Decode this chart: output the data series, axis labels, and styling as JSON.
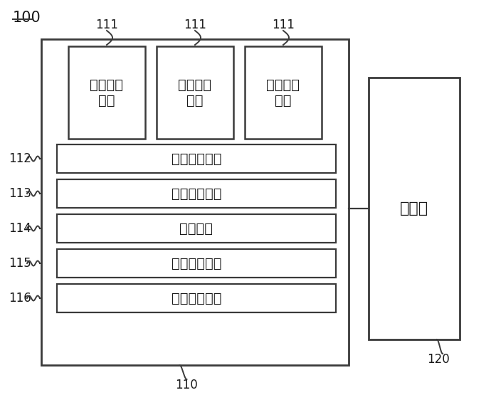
{
  "bg_color": "#ffffff",
  "line_color": "#3a3a3a",
  "text_color": "#1a1a1a",
  "label_100": "100",
  "label_110": "110",
  "label_120": "120",
  "label_111": "111",
  "label_112": "112",
  "label_113": "113",
  "label_114": "114",
  "label_115": "115",
  "label_116": "116",
  "sampling_text": "采样调查\n模块",
  "module_112": "第一判断模块",
  "module_113": "第二判断模块",
  "module_114": "模拟模块",
  "module_115": "效果评估模块",
  "module_116": "流转程序模块",
  "blockchain_text": "区块链",
  "font_size_main": 14,
  "font_size_label": 12,
  "font_size_100": 14
}
